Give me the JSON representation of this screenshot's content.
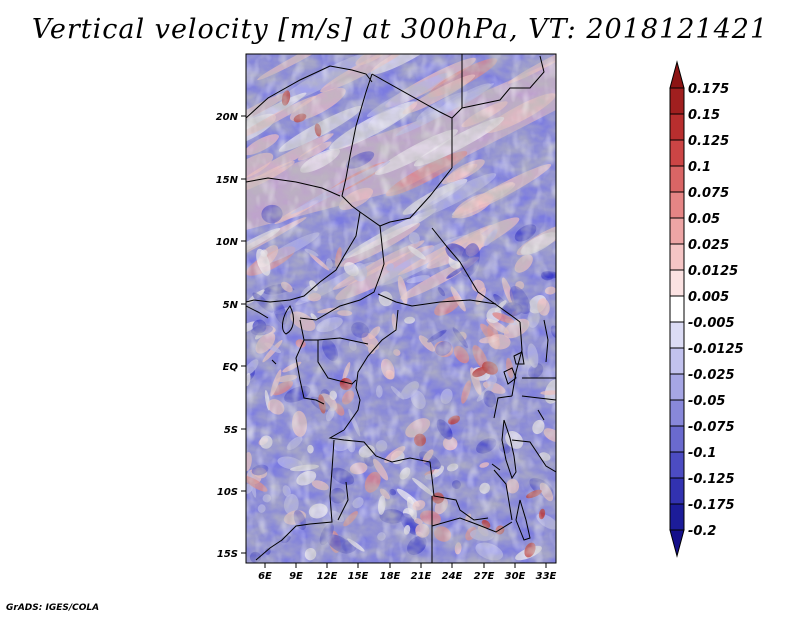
{
  "title": "Vertical velocity [m/s] at 300hPa, VT: 2018121421",
  "credit": "GrADS: IGES/COLA",
  "lat_labels": [
    "20N",
    "15N",
    "10N",
    "5N",
    "EQ",
    "5S",
    "10S",
    "15S"
  ],
  "lon_labels": [
    "6E",
    "9E",
    "12E",
    "15E",
    "18E",
    "21E",
    "24E",
    "27E",
    "30E",
    "33E"
  ],
  "colorbar": {
    "levels": [
      "0.175",
      "0.15",
      "0.125",
      "0.1",
      "0.075",
      "0.05",
      "0.025",
      "0.0125",
      "0.005",
      "-0.005",
      "-0.0125",
      "-0.025",
      "-0.05",
      "-0.075",
      "-0.1",
      "-0.125",
      "-0.175",
      "-0.2"
    ],
    "colors": [
      "#a01f1f",
      "#b82e2e",
      "#cc4545",
      "#d96565",
      "#e58585",
      "#eda5a5",
      "#f5c5c5",
      "#fbe2e2",
      "#ffffff",
      "#dcdcf5",
      "#c2c2ee",
      "#a6a6e4",
      "#8888da",
      "#6a6ace",
      "#4c4cc2",
      "#3232b0",
      "#1c1c99"
    ],
    "over_color": "#8c1414",
    "under_color": "#140f8a"
  },
  "field_palette": {
    "strong_negative": "#3a3ac8",
    "negative": "#7878e0",
    "weak_negative": "#b4b4ee",
    "neutral": "#f4f0f6",
    "weak_positive": "#f5c0c0",
    "positive": "#e28080",
    "strong_positive": "#b82a2a"
  }
}
